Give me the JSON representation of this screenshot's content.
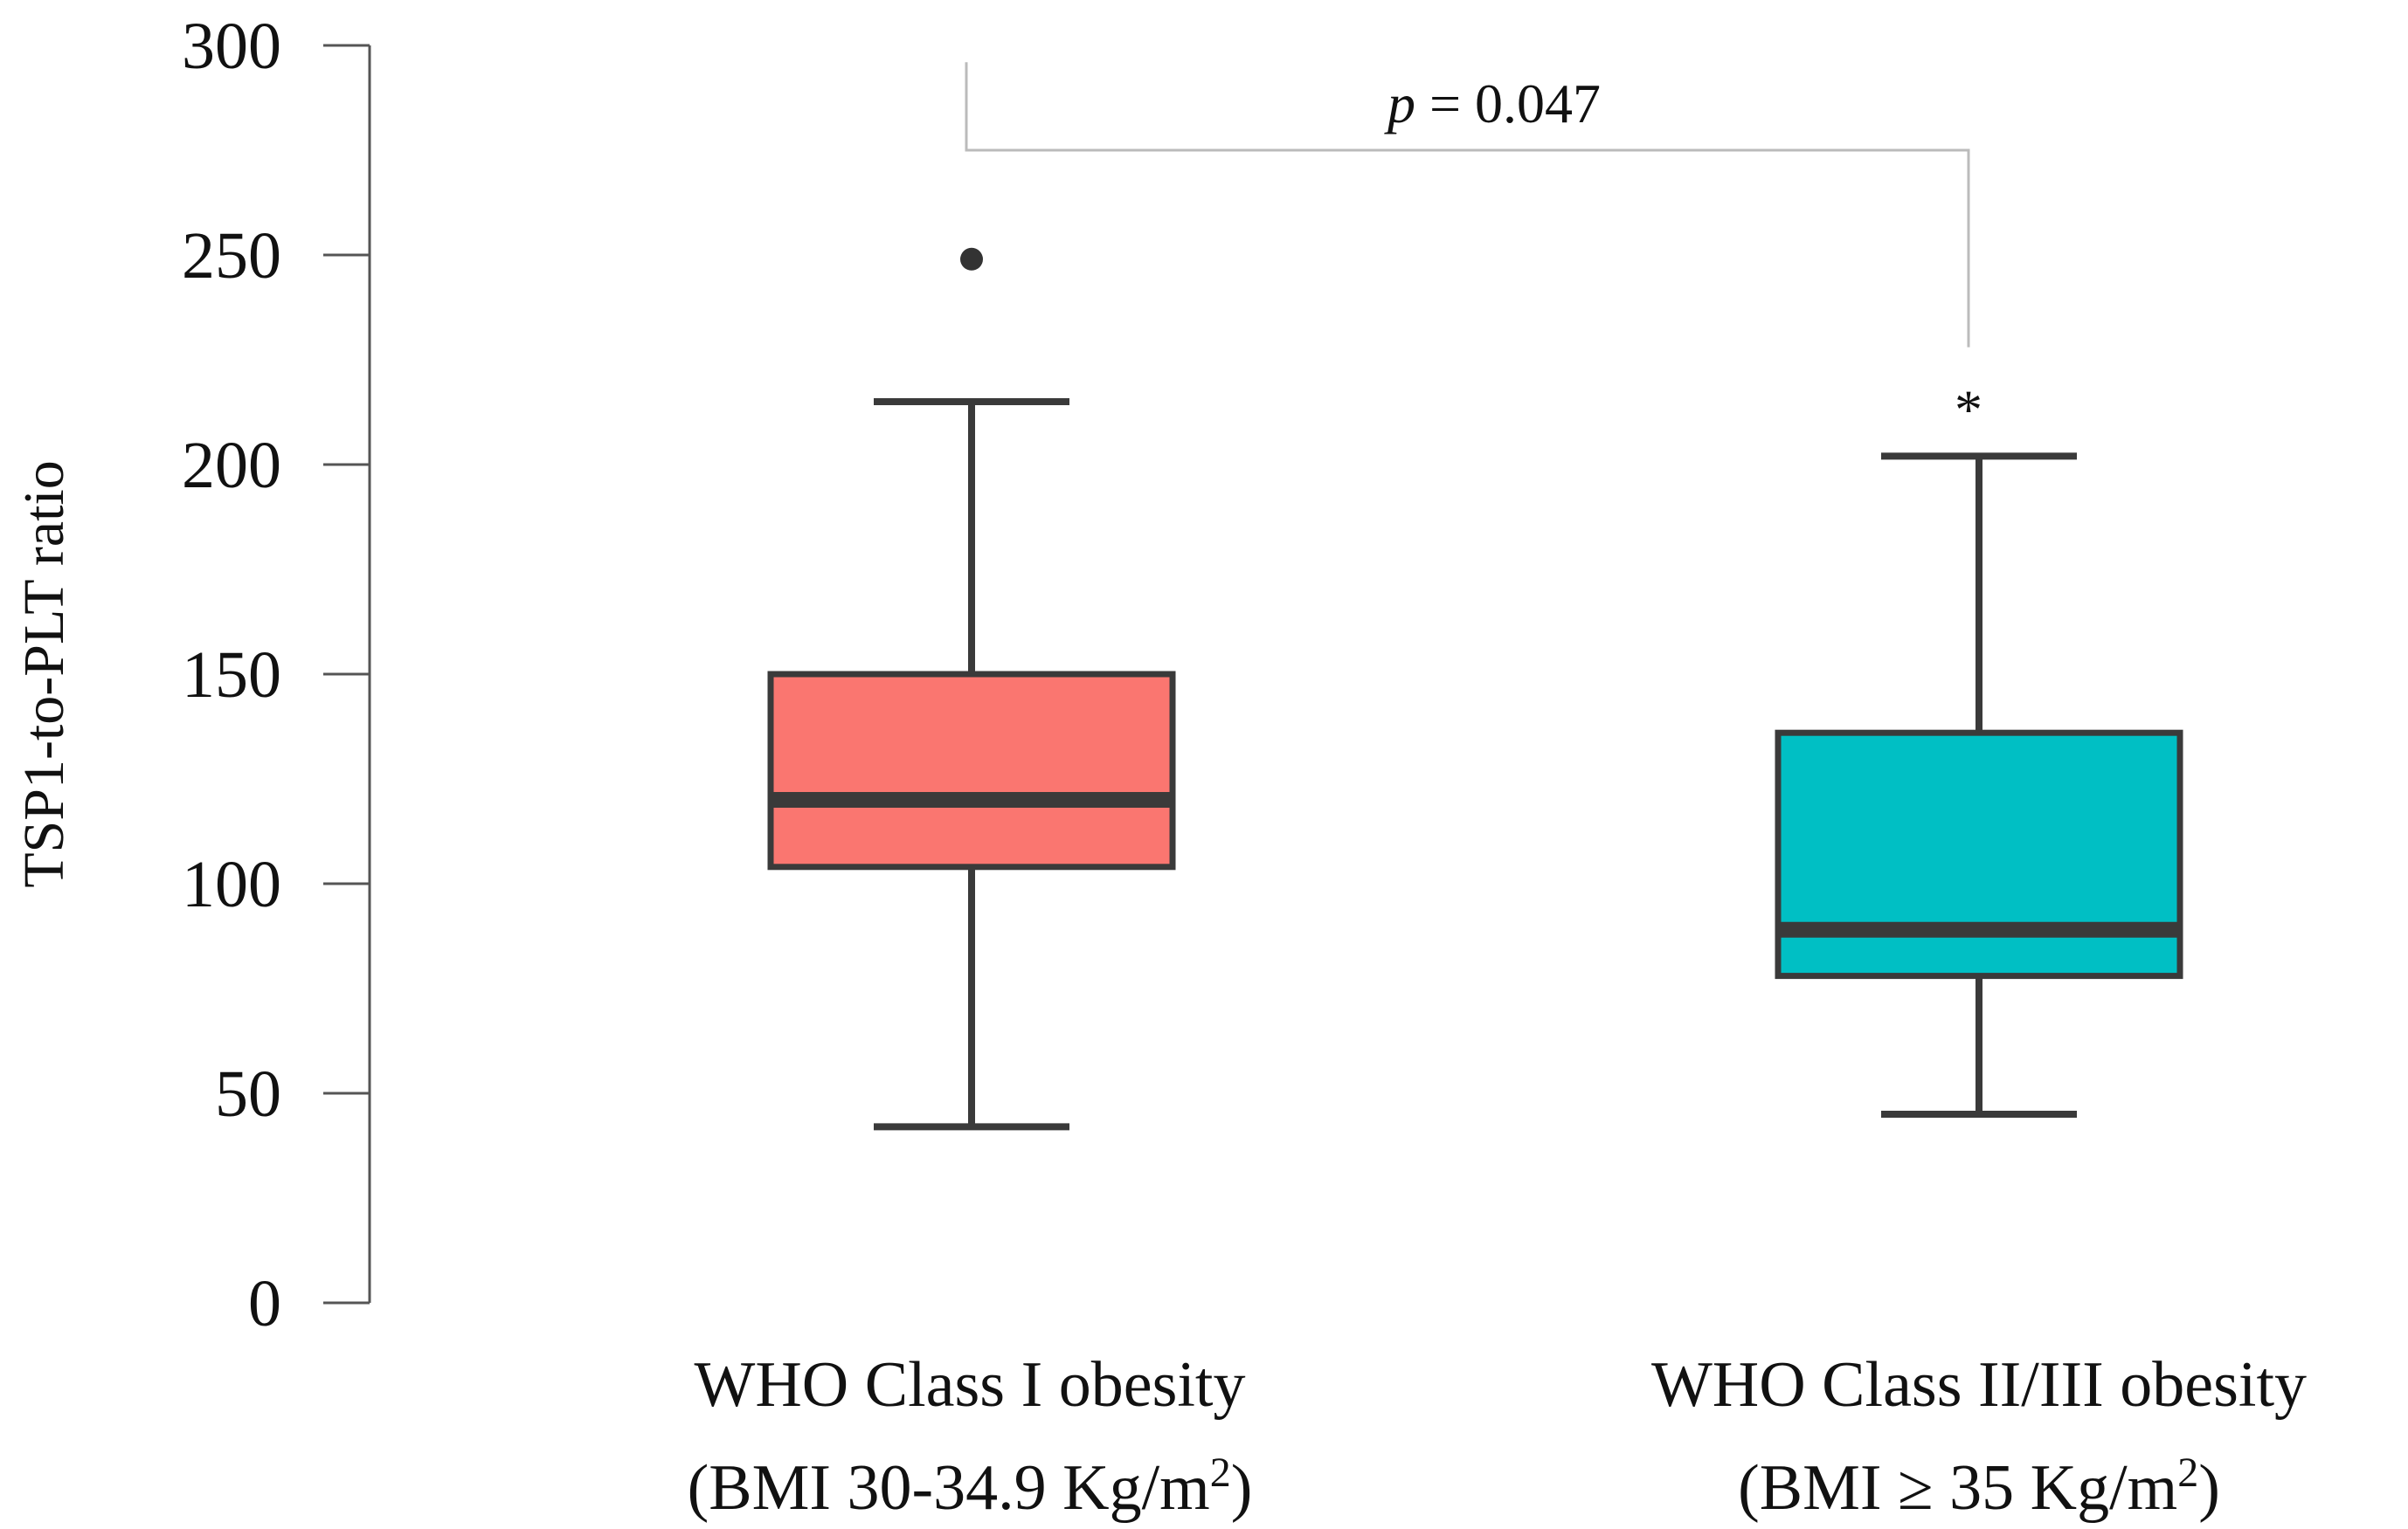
{
  "chart_data": {
    "type": "boxplot",
    "ylabel": "TSP1-to-PLT ratio",
    "xlabel": "",
    "ylim": [
      0,
      300
    ],
    "yticks": [
      "0",
      "50",
      "100",
      "150",
      "200",
      "250",
      "300"
    ],
    "grid": false,
    "legend": "none",
    "categories": [
      {
        "label_line1": "WHO Class I obesity",
        "label_line2_prefix": "(BMI 30-34.9 Kg/m",
        "label_line2_sup": "2",
        "label_line2_suffix": ")",
        "color": "#FA7670",
        "whisker_low": 42,
        "q1": 104,
        "median": 120,
        "q3": 150,
        "whisker_high": 215,
        "outliers": [
          249
        ]
      },
      {
        "label_line1": "WHO Class II/III obesity",
        "label_line2_prefix": "(BMI ≥ 35 Kg/m",
        "label_line2_sup": "2",
        "label_line2_suffix": ")",
        "color": "#00BFC4",
        "whisker_low": 45,
        "q1": 78,
        "median": 89,
        "q3": 136,
        "whisker_high": 202,
        "outliers": []
      }
    ],
    "annotations": {
      "p_symbol": "p",
      "p_text": " = 0.047",
      "significance_marker": "*"
    }
  }
}
